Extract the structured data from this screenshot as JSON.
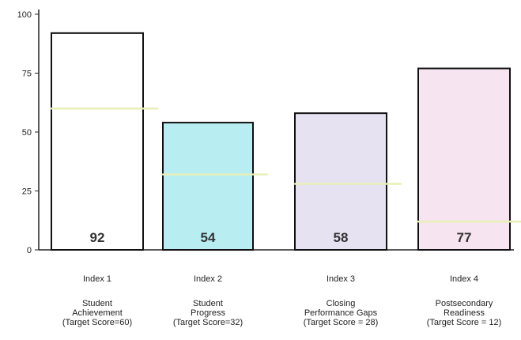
{
  "chart_data": {
    "type": "bar",
    "title": "",
    "xlabel": "",
    "ylabel": "",
    "ylim": [
      0,
      100
    ],
    "yticks": [
      0,
      25,
      50,
      75,
      100
    ],
    "grid": false,
    "categories": [
      {
        "index": "Index 1",
        "name": [
          "Student",
          "Achievement"
        ],
        "target_label": "(Target Score=60)"
      },
      {
        "index": "Index 2",
        "name": [
          "Student",
          "Progress"
        ],
        "target_label": "(Target Score=32)"
      },
      {
        "index": "Index 3",
        "name": [
          "Closing",
          "Performance Gaps"
        ],
        "target_label": "(Target Score = 28)"
      },
      {
        "index": "Index 4",
        "name": [
          "Postsecondary",
          "Readiness"
        ],
        "target_label": "(Target Score = 12)"
      }
    ],
    "values": [
      92,
      54,
      58,
      77
    ],
    "data_labels": [
      "92",
      "54",
      "58",
      "77"
    ],
    "targets": [
      60,
      32,
      28,
      12
    ],
    "bar_colors": [
      "#ffffff",
      "#b8eef2",
      "#e6e2f2",
      "#f6e4f0"
    ],
    "target_line_color": "#e8efb8"
  }
}
